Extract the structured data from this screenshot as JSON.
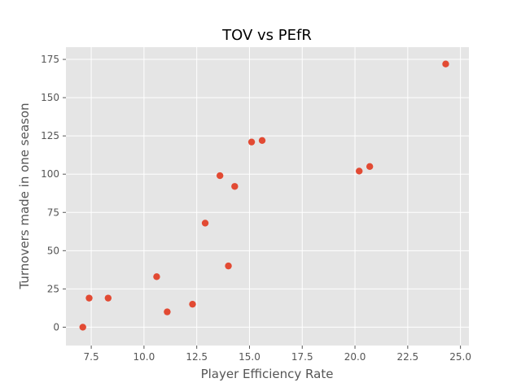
{
  "chart_data": {
    "type": "scatter",
    "title": "TOV vs PEfR",
    "xlabel": "Player Efficiency Rate",
    "ylabel": "Turnovers made in one season",
    "xlim": [
      6.3,
      25.4
    ],
    "ylim": [
      -12,
      183
    ],
    "x_ticks": [
      7.5,
      10.0,
      12.5,
      15.0,
      17.5,
      20.0,
      22.5,
      25.0
    ],
    "x_tick_labels": [
      "7.5",
      "10.0",
      "12.5",
      "15.0",
      "17.5",
      "20.0",
      "22.5",
      "25.0"
    ],
    "y_ticks": [
      0,
      25,
      50,
      75,
      100,
      125,
      150,
      175
    ],
    "y_tick_labels": [
      "0",
      "25",
      "50",
      "75",
      "100",
      "125",
      "150",
      "175"
    ],
    "grid": true,
    "points": [
      {
        "x": 7.1,
        "y": 0
      },
      {
        "x": 7.4,
        "y": 19
      },
      {
        "x": 8.3,
        "y": 19
      },
      {
        "x": 10.6,
        "y": 33
      },
      {
        "x": 11.1,
        "y": 10
      },
      {
        "x": 12.3,
        "y": 15
      },
      {
        "x": 12.9,
        "y": 68
      },
      {
        "x": 13.6,
        "y": 99
      },
      {
        "x": 14.0,
        "y": 40
      },
      {
        "x": 14.3,
        "y": 92
      },
      {
        "x": 15.1,
        "y": 121
      },
      {
        "x": 15.6,
        "y": 122
      },
      {
        "x": 20.2,
        "y": 102
      },
      {
        "x": 20.7,
        "y": 105
      },
      {
        "x": 24.3,
        "y": 172
      }
    ]
  },
  "colors": {
    "plot_background": "#e5e5e5",
    "grid": "#ffffff",
    "marker": "#e24a33",
    "tick_text": "#555555",
    "title_text": "#000000"
  }
}
